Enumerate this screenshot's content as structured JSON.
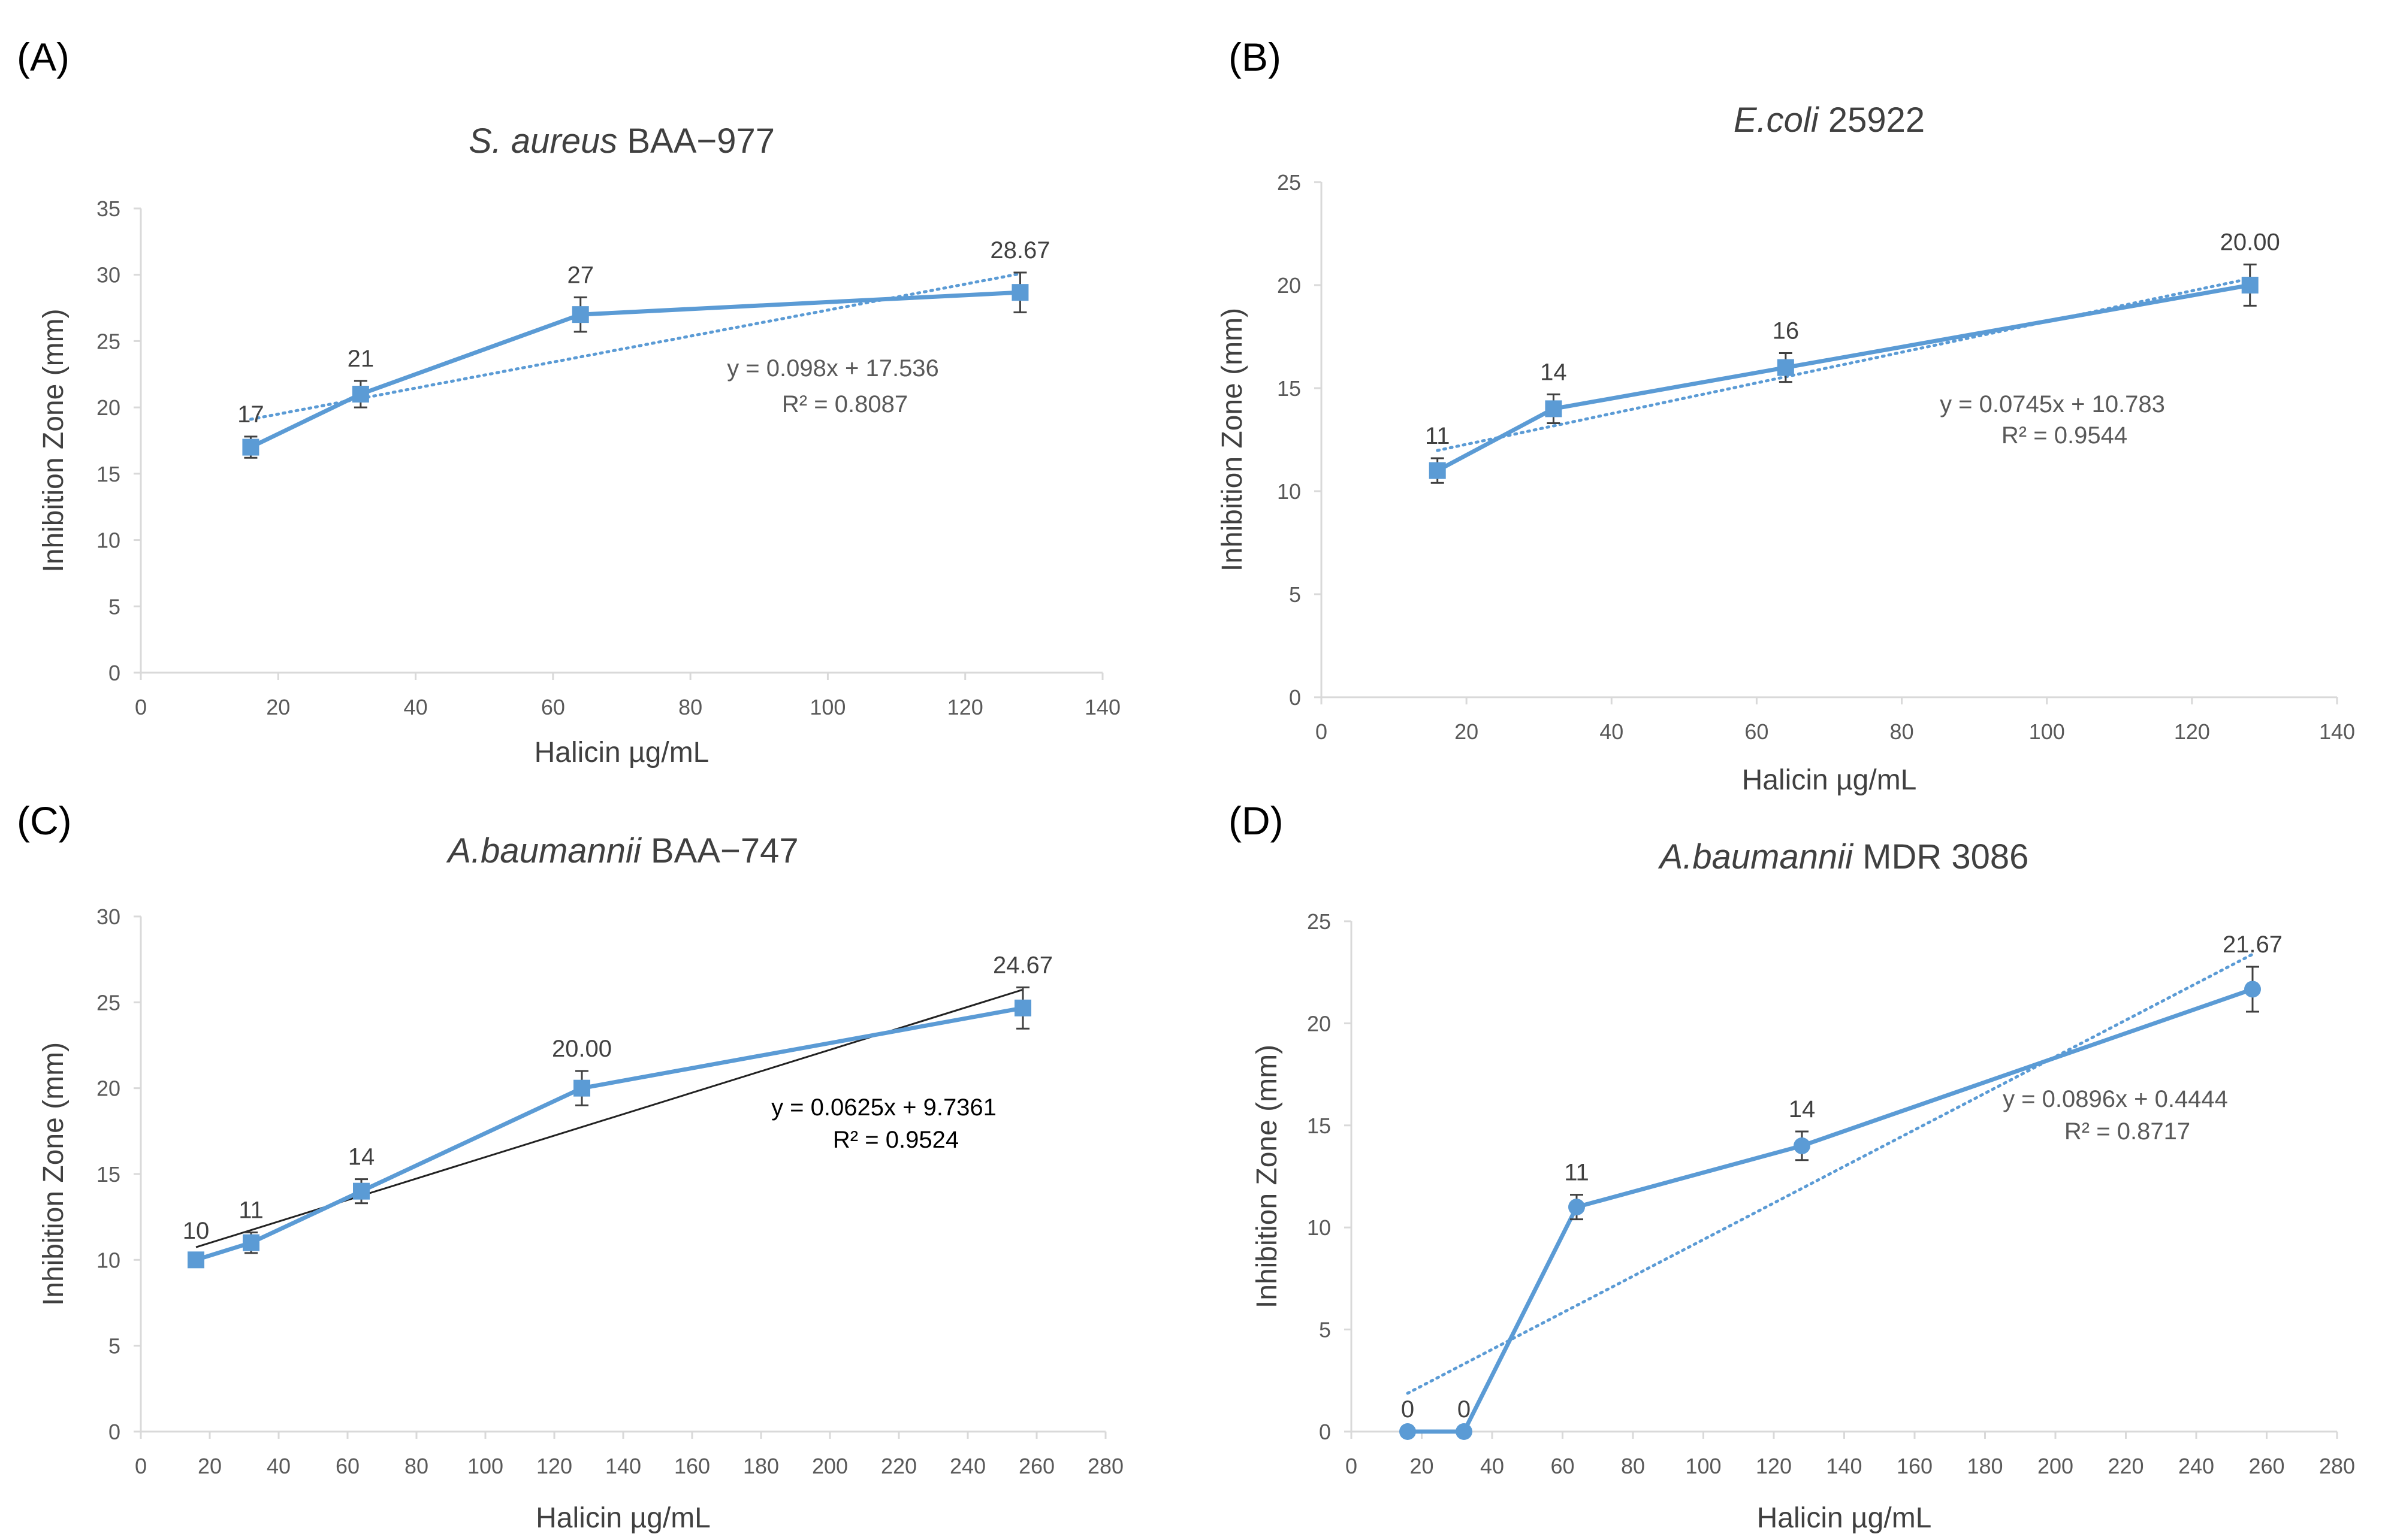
{
  "figure": {
    "series_color": "#5b9bd5",
    "axis_color": "#d9d9d9",
    "tick_color": "#595959",
    "text_color": "#404040",
    "black_trend_color": "#222222"
  },
  "chart_data": [
    {
      "panel_label": "(A)",
      "type": "line",
      "title_italic": "S. aureus",
      "title_rest": " BAA−977",
      "xlabel": "Halicin µg/mL",
      "ylabel": "Inhibition Zone (mm)",
      "xlim": [
        0,
        140
      ],
      "ylim": [
        0,
        35
      ],
      "xticks": [
        0,
        20,
        40,
        60,
        80,
        100,
        120,
        140
      ],
      "yticks": [
        0,
        5,
        10,
        15,
        20,
        25,
        30,
        35
      ],
      "marker": "square",
      "series": [
        {
          "name": "S. aureus BAA-977",
          "x": [
            16,
            32,
            64,
            128
          ],
          "y": [
            17,
            21,
            27,
            28.67
          ],
          "error": [
            0.8,
            1.0,
            1.3,
            1.5
          ],
          "labels": [
            "17",
            "21",
            "27",
            "28.67"
          ]
        }
      ],
      "trendline": {
        "slope": 0.098,
        "intercept": 17.536,
        "x_range": [
          16,
          128
        ],
        "style": "dotted",
        "color": "#5b9bd5",
        "equation": "y = 0.098x + 17.536",
        "r2": "R² = 0.8087"
      }
    },
    {
      "panel_label": "(B)",
      "type": "line",
      "title_italic": "E.coli",
      "title_rest": " 25922",
      "xlabel": "Halicin µg/mL",
      "ylabel": "Inhibition Zone (mm)",
      "xlim": [
        0,
        140
      ],
      "ylim": [
        0,
        25
      ],
      "xticks": [
        0,
        20,
        40,
        60,
        80,
        100,
        120,
        140
      ],
      "yticks": [
        0,
        5,
        10,
        15,
        20,
        25
      ],
      "marker": "square",
      "series": [
        {
          "name": "E.coli 25922",
          "x": [
            16,
            32,
            64,
            128
          ],
          "y": [
            11,
            14,
            16,
            20
          ],
          "error": [
            0.6,
            0.7,
            0.7,
            1.0
          ],
          "labels": [
            "11",
            "14",
            "16",
            "20.00"
          ]
        }
      ],
      "trendline": {
        "slope": 0.0745,
        "intercept": 10.783,
        "x_range": [
          16,
          128
        ],
        "style": "dotted",
        "color": "#5b9bd5",
        "equation": "y = 0.0745x + 10.783",
        "r2": "R² = 0.9544"
      }
    },
    {
      "panel_label": "(C)",
      "type": "line",
      "title_italic": "A.baumannii",
      "title_rest": " BAA−747",
      "xlabel": "Halicin µg/mL",
      "ylabel": "Inhibition Zone (mm)",
      "xlim": [
        0,
        280
      ],
      "ylim": [
        0,
        30
      ],
      "xticks": [
        0,
        20,
        40,
        60,
        80,
        100,
        120,
        140,
        160,
        180,
        200,
        220,
        240,
        260,
        280
      ],
      "yticks": [
        0,
        5,
        10,
        15,
        20,
        25,
        30
      ],
      "marker": "square",
      "series": [
        {
          "name": "A.baumannii BAA-747",
          "x": [
            16,
            32,
            64,
            128,
            256
          ],
          "y": [
            10,
            11,
            14,
            20,
            24.67
          ],
          "error": [
            0.4,
            0.6,
            0.7,
            1.0,
            1.2
          ],
          "labels": [
            "10",
            "11",
            "14",
            "20.00",
            "24.67"
          ]
        }
      ],
      "trendline": {
        "slope": 0.0625,
        "intercept": 9.7361,
        "x_range": [
          16,
          256
        ],
        "style": "solid",
        "color": "#222222",
        "equation": "y = 0.0625x + 9.7361",
        "r2": "R² = 0.9524"
      }
    },
    {
      "panel_label": "(D)",
      "type": "line",
      "title_italic": "A.baumannii",
      "title_rest": " MDR 3086",
      "xlabel": "Halicin µg/mL",
      "ylabel": "Inhibition Zone (mm)",
      "xlim": [
        0,
        280
      ],
      "ylim": [
        0,
        25
      ],
      "xticks": [
        0,
        20,
        40,
        60,
        80,
        100,
        120,
        140,
        160,
        180,
        200,
        220,
        240,
        260,
        280
      ],
      "yticks": [
        0,
        5,
        10,
        15,
        20,
        25
      ],
      "marker": "circle",
      "series": [
        {
          "name": "A.baumannii MDR 3086",
          "x": [
            16,
            32,
            64,
            128,
            256
          ],
          "y": [
            0,
            0,
            11,
            14,
            21.67
          ],
          "error": [
            0,
            0,
            0.6,
            0.7,
            1.1
          ],
          "labels": [
            "0",
            "0",
            "11",
            "14",
            "21.67"
          ]
        }
      ],
      "trendline": {
        "slope": 0.0896,
        "intercept": 0.4444,
        "x_range": [
          16,
          256
        ],
        "style": "dotted",
        "color": "#5b9bd5",
        "equation": "y = 0.0896x + 0.4444",
        "r2": "R² = 0.8717"
      }
    }
  ]
}
